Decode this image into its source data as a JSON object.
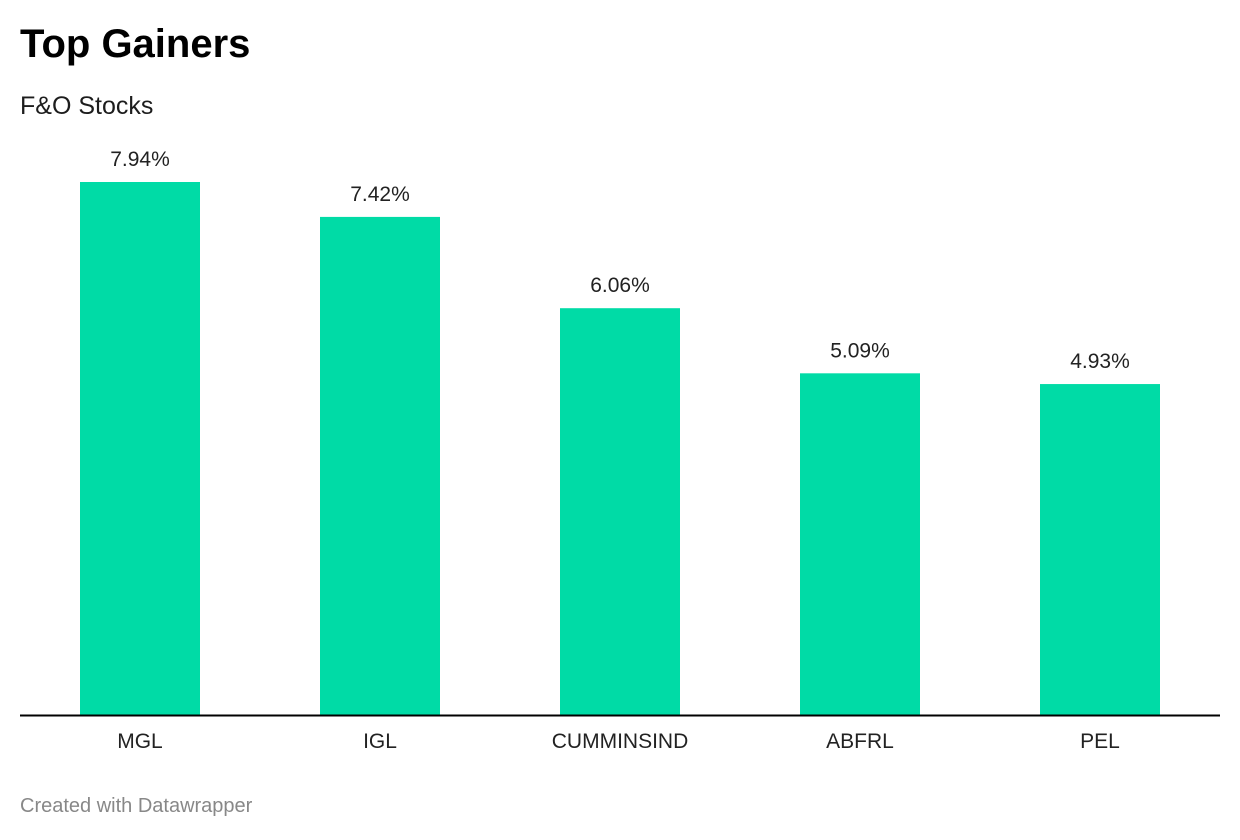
{
  "header": {
    "title": "Top Gainers",
    "subtitle": "F&O Stocks"
  },
  "footer": {
    "credit": "Created with Datawrapper"
  },
  "colors": {
    "bar": "#00dba6",
    "axis": "#000000",
    "label": "#222222"
  },
  "chart_data": {
    "type": "bar",
    "title": "Top Gainers",
    "subtitle": "F&O Stocks",
    "categories": [
      "MGL",
      "IGL",
      "CUMMINSIND",
      "ABFRL",
      "PEL"
    ],
    "values": [
      7.94,
      7.42,
      6.06,
      5.09,
      4.93
    ],
    "value_labels": [
      "7.94%",
      "7.42%",
      "6.06%",
      "5.09%",
      "4.93%"
    ],
    "unit": "%",
    "ylim": [
      0,
      7.94
    ],
    "grid": false,
    "legend": "none"
  }
}
